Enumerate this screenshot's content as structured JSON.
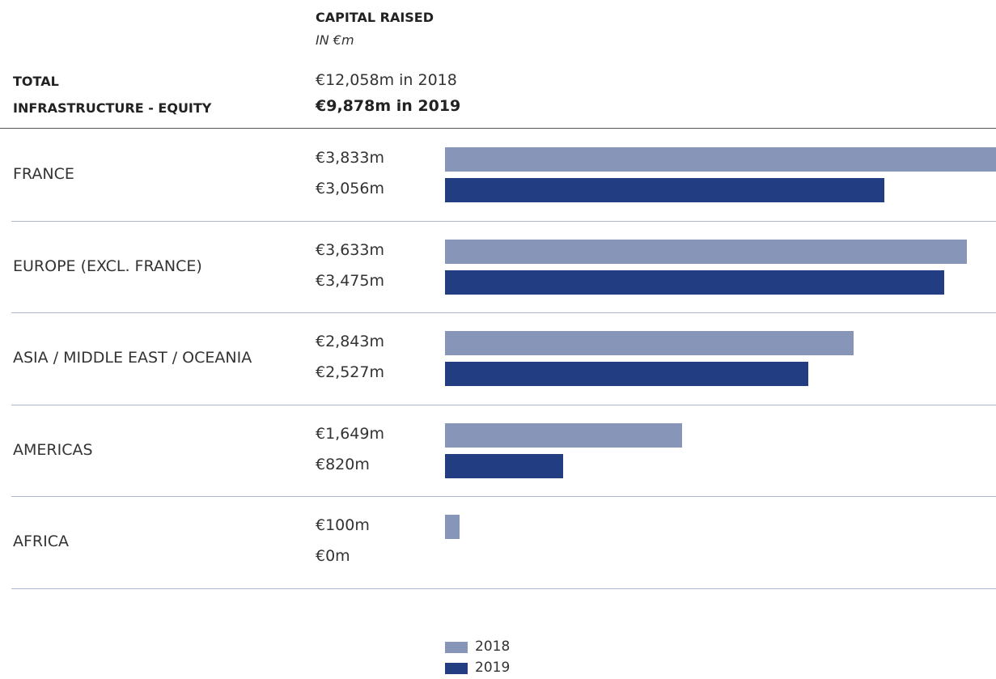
{
  "chart_data": {
    "type": "bar",
    "orientation": "horizontal",
    "title": "CAPITAL RAISED",
    "subtitle": "IN €m",
    "heading": [
      "TOTAL",
      "INFRASTRUCTURE - EQUITY"
    ],
    "totals": [
      "€12,058m in 2018",
      "€9,878m in 2019"
    ],
    "categories": [
      "FRANCE",
      "EUROPE (EXCL. FRANCE)",
      "ASIA / MIDDLE EAST / OCEANIA",
      "AMERICAS",
      "AFRICA"
    ],
    "series": [
      {
        "name": "2018",
        "color": "#8796b8",
        "values": [
          3833,
          3633,
          2843,
          1649,
          100
        ],
        "value_labels": [
          "€3,833m",
          "€3,633m",
          "€2,843m",
          "€1,649m",
          "€100m"
        ]
      },
      {
        "name": "2019",
        "color": "#233d82",
        "values": [
          3056,
          3475,
          2527,
          820,
          0
        ],
        "value_labels": [
          "€3,056m",
          "€3,475m",
          "€2,527m",
          "€820m",
          "€0m"
        ]
      }
    ],
    "xlim": [
      0,
      3833
    ],
    "legend": "bottom"
  }
}
